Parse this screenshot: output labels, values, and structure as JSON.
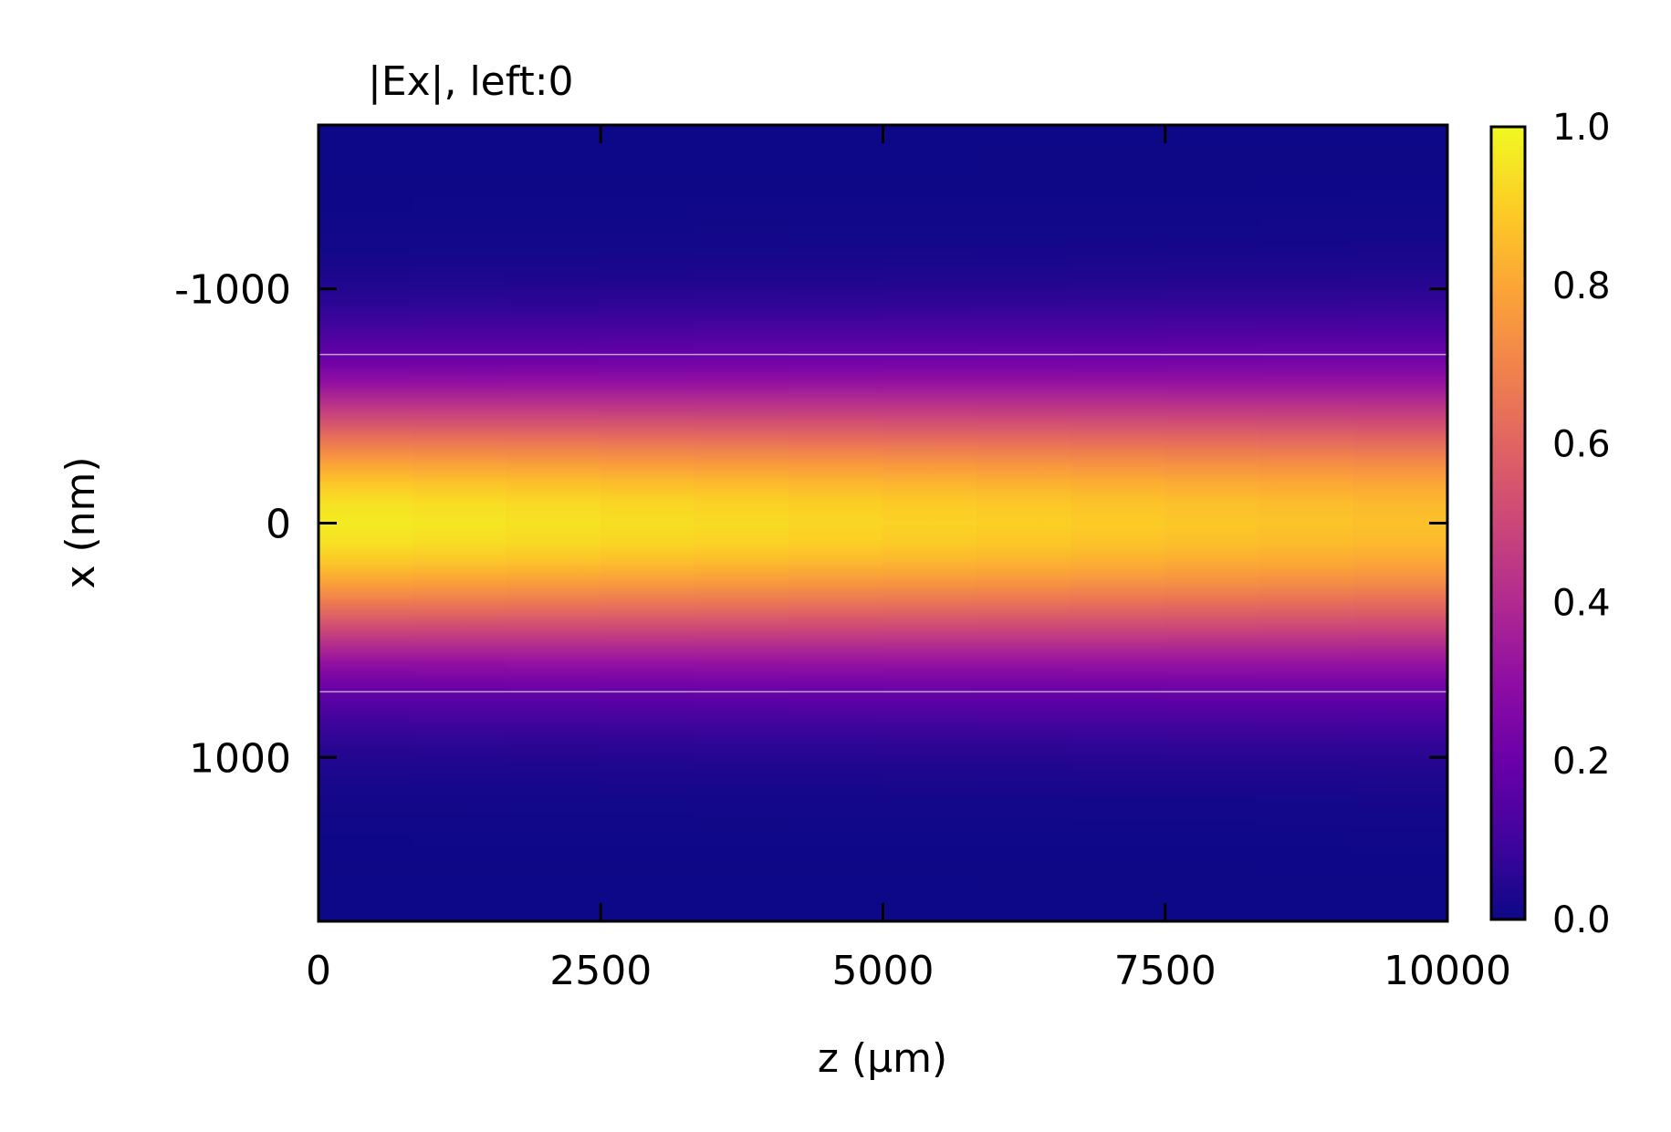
{
  "chart_data": {
    "type": "heatmap",
    "title": "|Ex|, left:0",
    "xlabel": "z (µm)",
    "ylabel": "x (nm)",
    "xlim": [
      0,
      10000
    ],
    "ylim": [
      -1700,
      1700
    ],
    "y_inverted": true,
    "colormap": "plasma",
    "x_ticks": [
      {
        "value": 0,
        "label": "0"
      },
      {
        "value": 2500,
        "label": "2500"
      },
      {
        "value": 5000,
        "label": "5000"
      },
      {
        "value": 7500,
        "label": "7500"
      },
      {
        "value": 10000,
        "label": "10000"
      }
    ],
    "y_ticks": [
      {
        "value": -1000,
        "label": "-1000"
      },
      {
        "value": 0,
        "label": "0"
      },
      {
        "value": 1000,
        "label": "1000"
      }
    ],
    "colorbar": {
      "range": [
        0,
        1
      ],
      "ticks": [
        {
          "value": 0.0,
          "label": "0.0"
        },
        {
          "value": 0.2,
          "label": "0.2"
        },
        {
          "value": 0.4,
          "label": "0.4"
        },
        {
          "value": 0.6,
          "label": "0.6"
        },
        {
          "value": 0.8,
          "label": "0.8"
        },
        {
          "value": 1.0,
          "label": "1.0"
        }
      ]
    },
    "field_profile": {
      "peak_start": 0.97,
      "peak_end": 0.86,
      "beam_halfwidth_nm_start": 560,
      "beam_halfwidth_nm_end": 600
    },
    "boundary_lines_x_nm": [
      -720,
      720
    ],
    "grid": false,
    "legend": "none"
  }
}
